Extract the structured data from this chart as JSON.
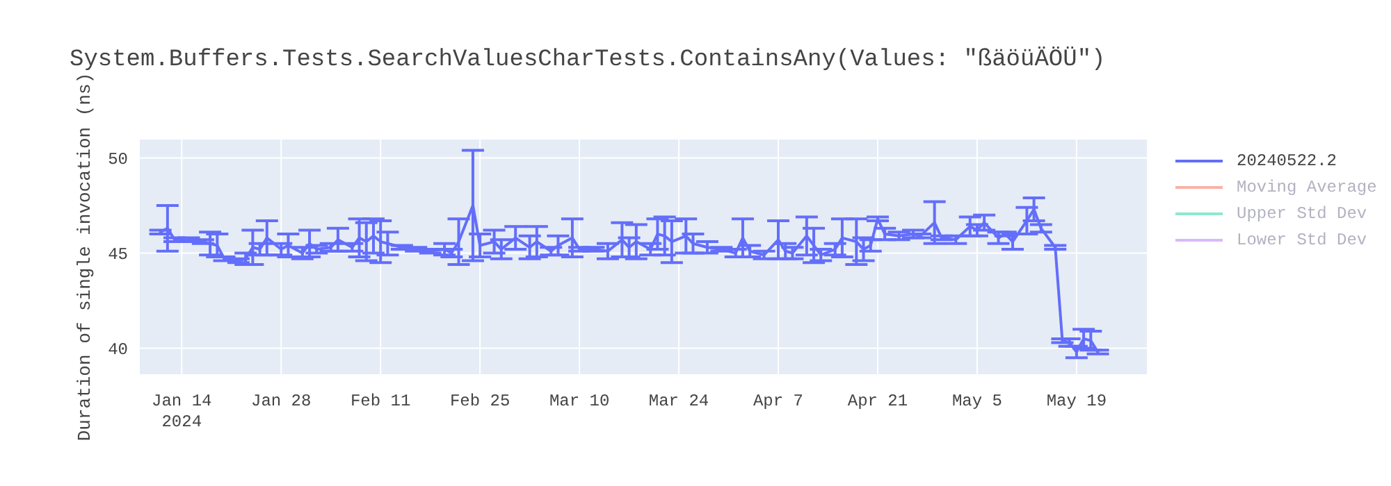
{
  "chart_data": {
    "type": "line",
    "title": "System.Buffers.Tests.SearchValuesCharTests.ContainsAny(Values: \"ßäöüÄÖÜ\")",
    "ylabel": "Duration of single invocation (ns)",
    "x": [
      "2024-01-11",
      "2024-01-12",
      "2024-01-13",
      "2024-01-15",
      "2024-01-17",
      "2024-01-18",
      "2024-01-19",
      "2024-01-20",
      "2024-01-22",
      "2024-01-23",
      "2024-01-24",
      "2024-01-25",
      "2024-01-26",
      "2024-01-28",
      "2024-01-29",
      "2024-01-31",
      "2024-02-01",
      "2024-02-02",
      "2024-02-04",
      "2024-02-05",
      "2024-02-07",
      "2024-02-08",
      "2024-02-09",
      "2024-02-10",
      "2024-02-11",
      "2024-02-12",
      "2024-02-14",
      "2024-02-16",
      "2024-02-18",
      "2024-02-20",
      "2024-02-21",
      "2024-02-22",
      "2024-02-24",
      "2024-02-25",
      "2024-02-27",
      "2024-02-28",
      "2024-03-01",
      "2024-03-03",
      "2024-03-04",
      "2024-03-06",
      "2024-03-07",
      "2024-03-09",
      "2024-03-10",
      "2024-03-12",
      "2024-03-14",
      "2024-03-16",
      "2024-03-17",
      "2024-03-18",
      "2024-03-20",
      "2024-03-21",
      "2024-03-22",
      "2024-03-23",
      "2024-03-25",
      "2024-03-26",
      "2024-03-28",
      "2024-03-30",
      "2024-04-01",
      "2024-04-02",
      "2024-04-03",
      "2024-04-05",
      "2024-04-07",
      "2024-04-08",
      "2024-04-09",
      "2024-04-11",
      "2024-04-12",
      "2024-04-13",
      "2024-04-15",
      "2024-04-16",
      "2024-04-18",
      "2024-04-19",
      "2024-04-20",
      "2024-04-21",
      "2024-04-22",
      "2024-04-24",
      "2024-04-26",
      "2024-04-27",
      "2024-04-29",
      "2024-04-30",
      "2024-05-02",
      "2024-05-04",
      "2024-05-05",
      "2024-05-06",
      "2024-05-08",
      "2024-05-09",
      "2024-05-10",
      "2024-05-12",
      "2024-05-13",
      "2024-05-14",
      "2024-05-16",
      "2024-05-17",
      "2024-05-18",
      "2024-05-19",
      "2024-05-20",
      "2024-05-21",
      "2024-05-22"
    ],
    "series": [
      {
        "name": "20240522.2",
        "color": "#636efa",
        "values": [
          46.1,
          46.3,
          45.7,
          45.7,
          45.6,
          45.5,
          45.4,
          44.7,
          44.6,
          44.7,
          45.3,
          45.2,
          45.8,
          45.2,
          45.4,
          45.0,
          45.5,
          45.2,
          45.3,
          45.7,
          45.3,
          45.8,
          45.6,
          45.9,
          45.6,
          45.5,
          45.3,
          45.2,
          45.1,
          45.2,
          45.0,
          45.6,
          47.5,
          45.4,
          45.6,
          45.2,
          45.8,
          45.3,
          45.6,
          45.1,
          45.4,
          45.8,
          45.2,
          45.2,
          45.1,
          45.7,
          45.3,
          45.6,
          45.2,
          46.0,
          45.9,
          45.6,
          45.9,
          45.5,
          45.3,
          45.2,
          45.0,
          45.8,
          45.1,
          44.9,
          45.7,
          45.1,
          45.0,
          45.9,
          45.4,
          44.9,
          45.2,
          45.8,
          45.6,
          45.2,
          45.4,
          46.8,
          46.0,
          45.9,
          46.0,
          45.9,
          46.6,
          45.8,
          45.7,
          46.4,
          46.2,
          46.6,
          45.8,
          46.0,
          45.6,
          46.7,
          47.3,
          46.3,
          45.3,
          40.4,
          40.3,
          39.8,
          40.5,
          40.4,
          39.8
        ],
        "errors": [
          0.1,
          1.2,
          0.1,
          0.1,
          0.1,
          0.6,
          0.6,
          0.1,
          0.1,
          0.3,
          0.9,
          0.3,
          0.9,
          0.3,
          0.6,
          0.3,
          0.7,
          0.2,
          0.2,
          0.6,
          0.2,
          1.0,
          1.0,
          0.9,
          1.1,
          0.6,
          0.1,
          0.1,
          0.1,
          0.3,
          0.2,
          1.2,
          2.9,
          0.6,
          0.6,
          0.5,
          0.6,
          0.6,
          0.8,
          0.2,
          0.5,
          1.0,
          0.1,
          0.1,
          0.4,
          0.9,
          0.5,
          0.9,
          0.3,
          0.8,
          1.0,
          1.1,
          0.9,
          0.5,
          0.3,
          0.1,
          0.2,
          1.0,
          0.3,
          0.2,
          1.0,
          0.4,
          0.3,
          1.0,
          0.9,
          0.3,
          0.3,
          1.0,
          1.2,
          0.6,
          0.3,
          0.1,
          0.3,
          0.2,
          0.2,
          0.1,
          1.1,
          0.1,
          0.2,
          0.5,
          0.3,
          0.4,
          0.3,
          0.1,
          0.4,
          0.7,
          0.6,
          0.2,
          0.1,
          0.1,
          0.2,
          0.3,
          0.5,
          0.5,
          0.1
        ]
      },
      {
        "name": "Moving Average",
        "color": "#ef553b",
        "values": [
          null,
          null,
          null,
          null,
          null,
          null,
          null,
          null,
          null,
          null,
          null,
          null,
          null,
          null,
          null,
          null,
          null,
          null,
          null,
          null,
          null,
          null,
          null,
          null,
          null,
          null,
          null,
          null,
          null,
          null,
          null,
          null,
          null,
          null,
          null,
          null,
          null,
          null,
          null,
          null,
          null,
          null,
          null,
          null,
          null,
          null,
          null,
          null,
          null,
          null,
          null,
          null,
          null,
          null,
          null,
          null,
          null,
          null,
          null,
          null,
          null,
          null,
          null,
          null,
          null,
          null,
          null,
          null,
          null,
          null,
          null,
          null,
          null,
          null,
          null,
          null,
          null,
          null,
          null,
          null,
          null,
          null,
          null,
          null,
          null,
          null,
          null,
          null,
          null,
          null,
          null,
          null,
          null,
          null,
          null
        ]
      },
      {
        "name": "Upper Std Dev",
        "color": "#00cc96",
        "values": [
          null,
          null,
          null,
          null,
          null,
          null,
          null,
          null,
          null,
          null,
          null,
          null,
          null,
          null,
          null,
          null,
          null,
          null,
          null,
          null,
          null,
          null,
          null,
          null,
          null,
          null,
          null,
          null,
          null,
          null,
          null,
          null,
          null,
          null,
          null,
          null,
          null,
          null,
          null,
          null,
          null,
          null,
          null,
          null,
          null,
          null,
          null,
          null,
          null,
          null,
          null,
          null,
          null,
          null,
          null,
          null,
          null,
          null,
          null,
          null,
          null,
          null,
          null,
          null,
          null,
          null,
          null,
          null,
          null,
          null,
          null,
          null,
          null,
          null,
          null,
          null,
          null,
          null,
          null,
          null,
          null,
          null,
          null,
          null,
          null,
          null,
          null,
          null,
          null,
          null,
          null,
          null,
          null,
          null,
          null
        ]
      },
      {
        "name": "Lower Std Dev",
        "color": "#ab63fa",
        "values": [
          null,
          null,
          null,
          null,
          null,
          null,
          null,
          null,
          null,
          null,
          null,
          null,
          null,
          null,
          null,
          null,
          null,
          null,
          null,
          null,
          null,
          null,
          null,
          null,
          null,
          null,
          null,
          null,
          null,
          null,
          null,
          null,
          null,
          null,
          null,
          null,
          null,
          null,
          null,
          null,
          null,
          null,
          null,
          null,
          null,
          null,
          null,
          null,
          null,
          null,
          null,
          null,
          null,
          null,
          null,
          null,
          null,
          null,
          null,
          null,
          null,
          null,
          null,
          null,
          null,
          null,
          null,
          null,
          null,
          null,
          null,
          null,
          null,
          null,
          null,
          null,
          null,
          null,
          null,
          null,
          null,
          null,
          null,
          null,
          null,
          null,
          null,
          null,
          null,
          null,
          null,
          null,
          null,
          null,
          null
        ]
      }
    ],
    "xlim": [
      "2024-01-08",
      "2024-05-29"
    ],
    "xticks": [
      {
        "value": "2024-01-14",
        "label": "Jan 14\n2024"
      },
      {
        "value": "2024-01-28",
        "label": "Jan 28"
      },
      {
        "value": "2024-02-11",
        "label": "Feb 11"
      },
      {
        "value": "2024-02-25",
        "label": "Feb 25"
      },
      {
        "value": "2024-03-10",
        "label": "Mar 10"
      },
      {
        "value": "2024-03-24",
        "label": "Mar 24"
      },
      {
        "value": "2024-04-07",
        "label": "Apr 7"
      },
      {
        "value": "2024-04-21",
        "label": "Apr 21"
      },
      {
        "value": "2024-05-05",
        "label": "May 5"
      },
      {
        "value": "2024-05-19",
        "label": "May 19"
      }
    ],
    "ylim": [
      38.6,
      51
    ],
    "yticks": [
      40,
      45,
      50
    ],
    "grid": true,
    "legend": "right",
    "marker": "none",
    "line_style": "solid"
  }
}
